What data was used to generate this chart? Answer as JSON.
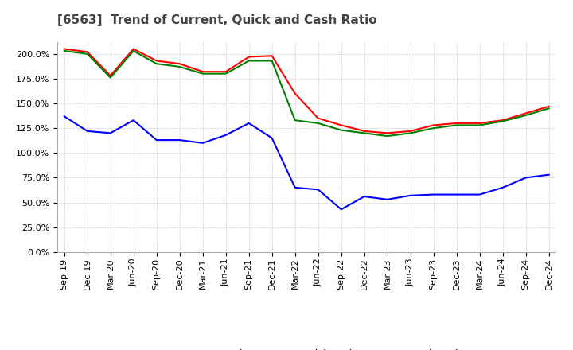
{
  "title": "[6563]  Trend of Current, Quick and Cash Ratio",
  "x_labels": [
    "Sep-19",
    "Dec-19",
    "Mar-20",
    "Jun-20",
    "Sep-20",
    "Dec-20",
    "Mar-21",
    "Jun-21",
    "Sep-21",
    "Dec-21",
    "Mar-22",
    "Jun-22",
    "Sep-22",
    "Dec-22",
    "Mar-23",
    "Jun-23",
    "Sep-23",
    "Dec-23",
    "Mar-24",
    "Jun-24",
    "Sep-24",
    "Dec-24"
  ],
  "current_ratio": [
    205,
    202,
    178,
    205,
    193,
    190,
    182,
    182,
    197,
    198,
    160,
    135,
    128,
    122,
    120,
    122,
    128,
    130,
    130,
    133,
    140,
    147
  ],
  "quick_ratio": [
    203,
    200,
    176,
    203,
    190,
    187,
    180,
    180,
    193,
    193,
    133,
    130,
    123,
    120,
    117,
    120,
    125,
    128,
    128,
    132,
    138,
    145
  ],
  "cash_ratio": [
    137,
    122,
    120,
    133,
    113,
    113,
    110,
    118,
    130,
    115,
    65,
    63,
    43,
    56,
    53,
    57,
    58,
    58,
    58,
    65,
    75,
    78
  ],
  "current_color": "#ff0000",
  "quick_color": "#008000",
  "cash_color": "#0000ff",
  "ylim": [
    0,
    212
  ],
  "yticks": [
    0,
    25,
    50,
    75,
    100,
    125,
    150,
    175,
    200
  ],
  "background_color": "#ffffff",
  "grid_color": "#aaaaaa",
  "title_fontsize": 11,
  "tick_fontsize": 8
}
